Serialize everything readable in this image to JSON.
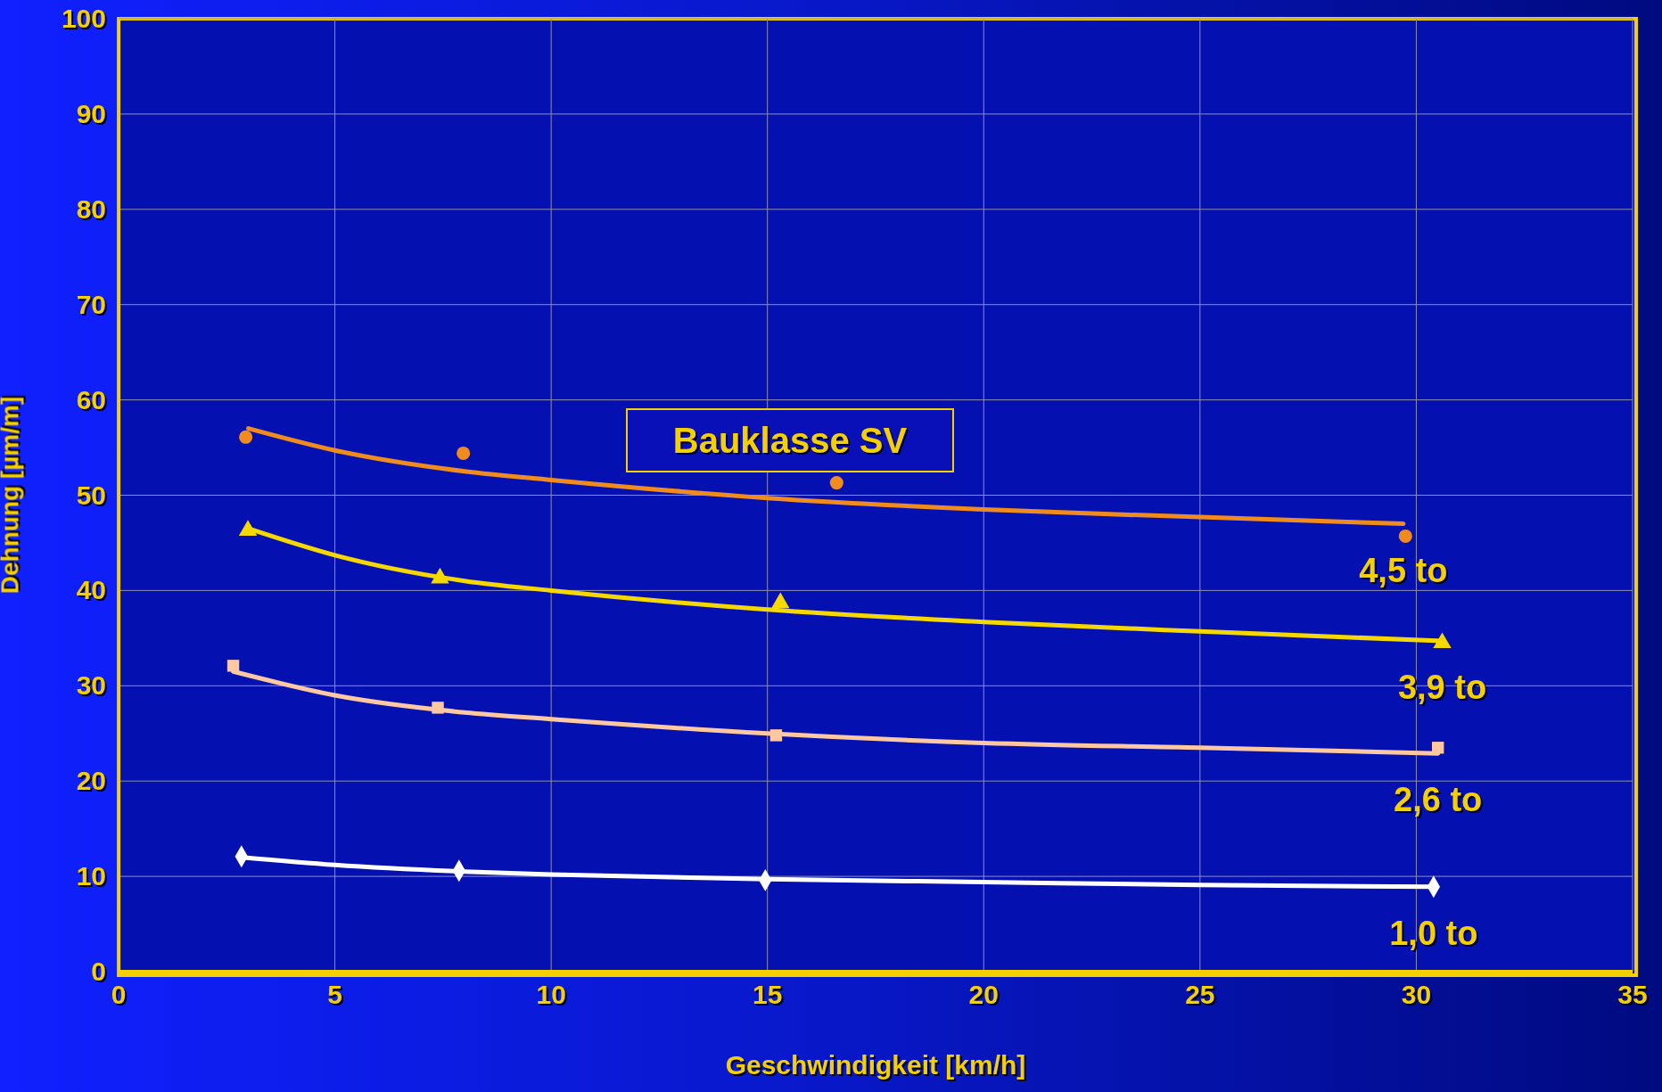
{
  "chart_data": {
    "type": "scatter",
    "xlabel": "Geschwindigkeit [km/h]",
    "ylabel": "Dehnung [µm/m]",
    "annotations": [
      "Bauklasse SV"
    ],
    "xlim": [
      0,
      35
    ],
    "xticks": [
      0,
      5,
      10,
      15,
      20,
      25,
      30,
      35
    ],
    "ylim": [
      0,
      100
    ],
    "yticks": [
      0,
      10,
      20,
      30,
      40,
      50,
      60,
      70,
      80,
      90,
      100
    ],
    "grid": true,
    "series": [
      {
        "color": "#f08c1e",
        "marker": "circle",
        "x": [
          2.94,
          7.97,
          16.6,
          29.75
        ],
        "values": [
          56.1,
          54.4,
          51.3,
          45.7
        ]
      },
      {
        "type": "line",
        "name": "4,5 to",
        "color": "#f08c1e",
        "marker": "none",
        "x": [
          3,
          5,
          8,
          10,
          15,
          20,
          25,
          29.7
        ],
        "values": [
          57,
          54.7,
          52.5,
          51.6,
          49.7,
          48.5,
          47.7,
          47
        ]
      },
      {
        "color": "#f5d800",
        "marker": "triangle",
        "x": [
          2.99,
          7.43,
          15.3,
          30.6
        ],
        "values": [
          46.3,
          41.3,
          38.7,
          34.5
        ]
      },
      {
        "type": "line",
        "name": "3,9 to",
        "color": "#f5d800",
        "marker": "none",
        "x": [
          3,
          5,
          8,
          10,
          15,
          20,
          25,
          30.6
        ],
        "values": [
          46.5,
          43.7,
          41,
          40,
          38,
          36.7,
          35.7,
          34.7
        ]
      },
      {
        "color": "#ffc8a0",
        "marker": "square",
        "x": [
          2.65,
          7.38,
          15.2,
          30.5
        ],
        "values": [
          32.1,
          27.7,
          24.8,
          23.5
        ]
      },
      {
        "type": "line",
        "name": "2,6 to",
        "color": "#ffc8a0",
        "marker": "none",
        "x": [
          2.65,
          5,
          8,
          10,
          15,
          20,
          25,
          30.5
        ],
        "values": [
          31.5,
          29,
          27.2,
          26.5,
          25,
          24,
          23.5,
          22.9
        ]
      },
      {
        "color": "#ffffff",
        "marker": "diamond",
        "x": [
          2.84,
          7.87,
          14.95,
          30.4
        ],
        "values": [
          12.1,
          10.6,
          9.6,
          8.9
        ]
      },
      {
        "type": "line",
        "name": "1,0 to",
        "color": "#ffffff",
        "marker": "none",
        "x": [
          2.84,
          5,
          8,
          10,
          15,
          20,
          25,
          30.4
        ],
        "values": [
          12,
          11.2,
          10.5,
          10.2,
          9.7,
          9.4,
          9.1,
          8.9
        ]
      }
    ]
  }
}
